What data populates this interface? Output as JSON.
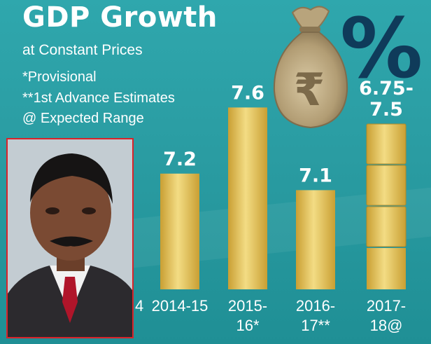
{
  "header": {
    "title": "GDP Growth",
    "subtitle": "at Constant Prices",
    "notes": [
      "*Provisional",
      "**1st Advance Estimates",
      "@ Expected Range"
    ]
  },
  "graphic": {
    "icon": "rupee-money-bag-icon",
    "symbol": "%",
    "rupee": "₹"
  },
  "colors": {
    "background": "#2a9aa0",
    "bar": "#e2bd4f",
    "bar_highlight": "#f3dc84",
    "percent": "#0f3b5a",
    "text": "#ffffff"
  },
  "chart_data": {
    "type": "bar",
    "categories": [
      "2014-15",
      "2015-16*",
      "2016-17**",
      "2017-18@"
    ],
    "tick_lines": [
      [
        "2014-15"
      ],
      [
        "2015-",
        "16*"
      ],
      [
        "2016-",
        "17**"
      ],
      [
        "2017-",
        "18@"
      ]
    ],
    "partial_tick": "4",
    "values": [
      7.2,
      7.6,
      7.1,
      7.5
    ],
    "range_low": [
      null,
      null,
      null,
      6.75
    ],
    "data_labels": [
      [
        "7.2"
      ],
      [
        "7.6"
      ],
      [
        "7.1"
      ],
      [
        "6.75-",
        "7.5"
      ]
    ],
    "title": "GDP Growth",
    "subtitle": "at Constant Prices",
    "xlabel": "",
    "ylabel": "",
    "grid": false,
    "legend": "none"
  },
  "photo": {
    "description_icon": "portrait-photo-icon"
  }
}
